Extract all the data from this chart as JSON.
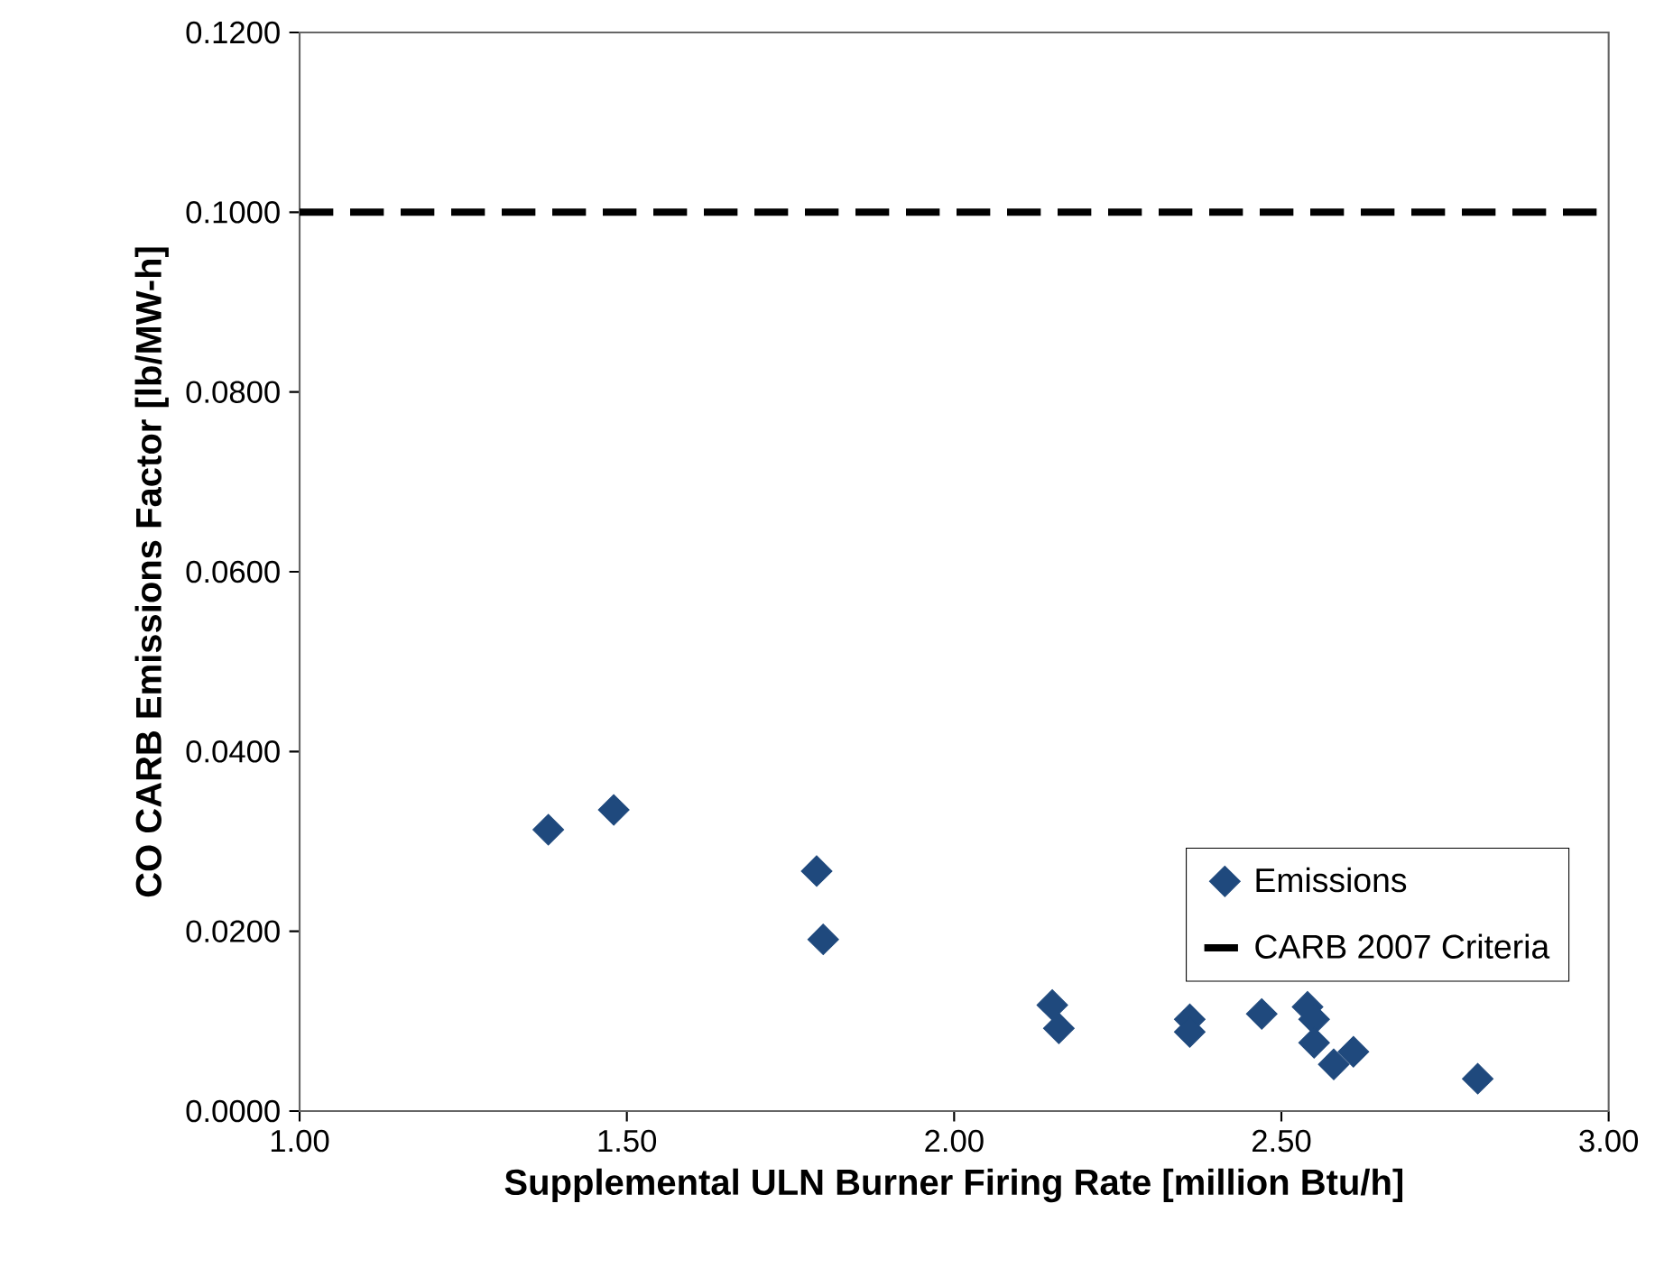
{
  "chart_data": {
    "type": "scatter",
    "xlabel": "Supplemental ULN Burner Firing Rate [million Btu/h]",
    "ylabel": "CO CARB Emissions Factor [lb/MW-h]",
    "series": [
      {
        "name": "Emissions",
        "color": "#1f497d",
        "marker": "diamond",
        "x": [
          1.38,
          1.48,
          1.79,
          1.8,
          2.15,
          2.16,
          2.36,
          2.36,
          2.47,
          2.54,
          2.55,
          2.55,
          2.58,
          2.61,
          2.8
        ],
        "values": [
          0.0313,
          0.0335,
          0.0267,
          0.0191,
          0.0118,
          0.0092,
          0.0102,
          0.0088,
          0.0108,
          0.0116,
          0.0102,
          0.0076,
          0.0052,
          0.0066,
          0.0036
        ]
      }
    ],
    "ref_lines": [
      {
        "axis": "y",
        "value": 0.1,
        "label": "CARB 2007 Criteria",
        "color": "#000000",
        "line_style": "dashed"
      }
    ],
    "xlim": [
      1.0,
      3.0
    ],
    "ylim": [
      0,
      0.12
    ],
    "xticks": [
      {
        "value": 1.0,
        "label": "1.00"
      },
      {
        "value": 1.5,
        "label": "1.50"
      },
      {
        "value": 2.0,
        "label": "2.00"
      },
      {
        "value": 2.5,
        "label": "2.50"
      },
      {
        "value": 3.0,
        "label": "3.00"
      }
    ],
    "yticks": [
      {
        "value": 0,
        "label": "0.0000"
      },
      {
        "value": 0.02,
        "label": "0.0200"
      },
      {
        "value": 0.04,
        "label": "0.0400"
      },
      {
        "value": 0.06,
        "label": "0.0600"
      },
      {
        "value": 0.08,
        "label": "0.0800"
      },
      {
        "value": 0.1,
        "label": "0.1000"
      },
      {
        "value": 0.12,
        "label": "0.1200"
      }
    ],
    "grid": false,
    "legend": "bottom right"
  }
}
